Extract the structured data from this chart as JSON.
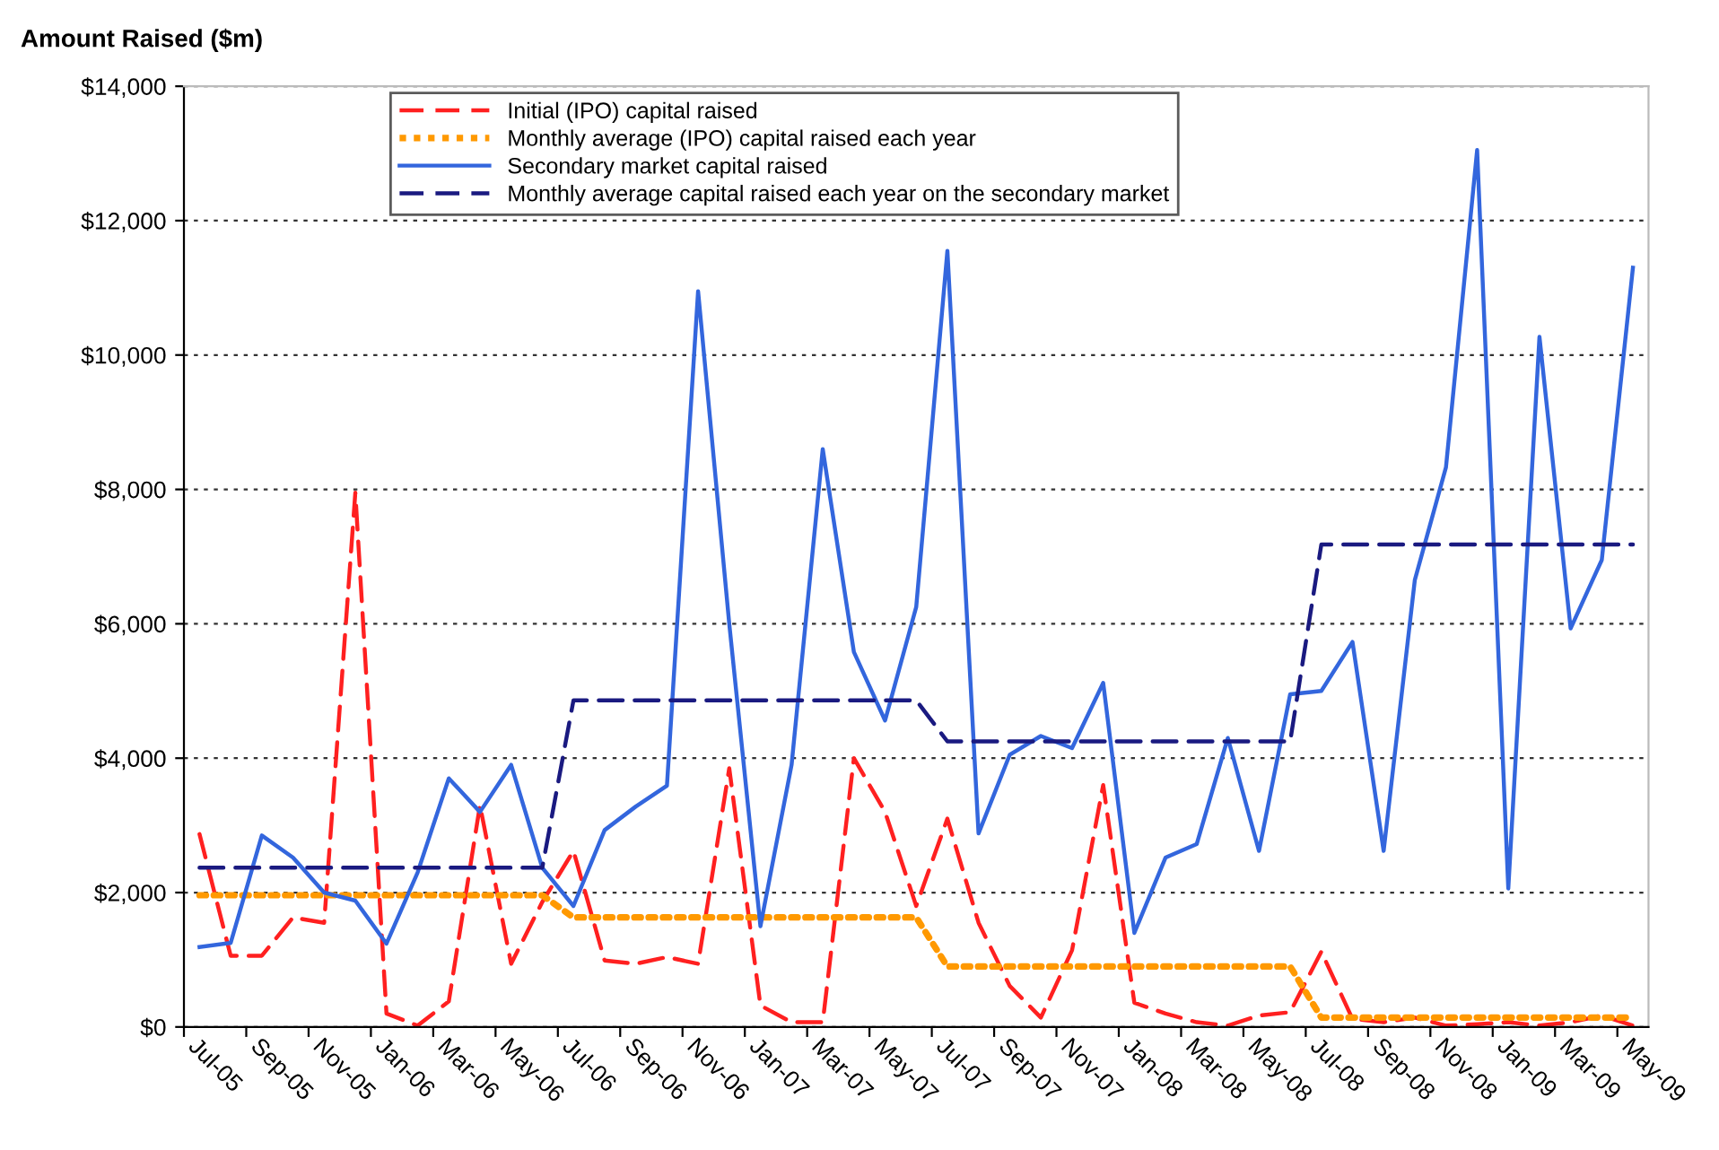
{
  "chart_data": {
    "type": "line",
    "ylabel": "Amount Raised ($m)",
    "categories": [
      "Jul-05",
      null,
      "Sep-05",
      null,
      "Nov-05",
      null,
      "Jan-06",
      null,
      "Mar-06",
      null,
      "May-06",
      null,
      "Jul-06",
      null,
      "Sep-06",
      null,
      "Nov-06",
      null,
      "Jan-07",
      null,
      "Mar-07",
      null,
      "May-07",
      null,
      "Jul-07",
      null,
      "Sep-07",
      null,
      "Nov-07",
      null,
      "Jan-08",
      null,
      "Mar-08",
      null,
      "May-08",
      null,
      "Jul-08",
      null,
      "Sep-08",
      null,
      "Nov-08",
      null,
      "Jan-09",
      null,
      "Mar-09",
      null,
      "May-09"
    ],
    "series": [
      {
        "name": "Initial (IPO) capital raised",
        "color": "#ff2020",
        "line_style": "dashed",
        "values": [
          2870,
          1060,
          1060,
          1630,
          1550,
          7950,
          200,
          20,
          380,
          3300,
          940,
          1860,
          2620,
          990,
          940,
          1040,
          940,
          3850,
          320,
          70,
          70,
          4000,
          3200,
          1800,
          3100,
          1550,
          610,
          140,
          1140,
          3600,
          360,
          200,
          70,
          20,
          170,
          220,
          1120,
          120,
          70,
          140,
          20,
          40,
          70,
          20,
          70,
          170,
          20
        ]
      },
      {
        "name": "Monthly average (IPO) capital raised each year",
        "color": "#ff9900",
        "line_style": "dotted",
        "values": [
          1960,
          1960,
          1960,
          1960,
          1960,
          1960,
          1960,
          1960,
          1960,
          1960,
          1960,
          1960,
          1630,
          1630,
          1630,
          1630,
          1630,
          1630,
          1630,
          1630,
          1630,
          1630,
          1630,
          1630,
          900,
          900,
          900,
          900,
          900,
          900,
          900,
          900,
          900,
          900,
          900,
          900,
          140,
          140,
          140,
          140,
          140,
          140,
          140,
          140,
          140,
          140,
          140
        ]
      },
      {
        "name": "Secondary market capital raised",
        "color": "#3366dd",
        "line_style": "solid",
        "values": [
          1190,
          1250,
          2850,
          2520,
          2000,
          1880,
          1240,
          2300,
          3700,
          3200,
          3900,
          2370,
          1800,
          2930,
          3280,
          3590,
          10950,
          6000,
          1500,
          3900,
          8600,
          5580,
          4560,
          6250,
          11550,
          2880,
          4050,
          4330,
          4150,
          5120,
          1400,
          2520,
          2720,
          4300,
          2620,
          4950,
          5000,
          5730,
          2620,
          6650,
          8330,
          13050,
          2060,
          10270,
          5930,
          6950,
          11300
        ]
      },
      {
        "name": "Monthly average capital raised each year on the secondary market",
        "color": "#1a1a80",
        "line_style": "dashed",
        "values": [
          2370,
          2370,
          2370,
          2370,
          2370,
          2370,
          2370,
          2370,
          2370,
          2370,
          2370,
          2370,
          4860,
          4860,
          4860,
          4860,
          4860,
          4860,
          4860,
          4860,
          4860,
          4860,
          4860,
          4860,
          4250,
          4250,
          4250,
          4250,
          4250,
          4250,
          4250,
          4250,
          4250,
          4250,
          4250,
          4250,
          7180,
          7180,
          7180,
          7180,
          7180,
          7180,
          7180,
          7180,
          7180,
          7180,
          7180
        ]
      }
    ],
    "ylim": [
      0,
      14000
    ],
    "yticks": [
      {
        "value": 0,
        "label": "$0"
      },
      {
        "value": 2000,
        "label": "$2,000"
      },
      {
        "value": 4000,
        "label": "$4,000"
      },
      {
        "value": 6000,
        "label": "$6,000"
      },
      {
        "value": 8000,
        "label": "$8,000"
      },
      {
        "value": 10000,
        "label": "$10,000"
      },
      {
        "value": 12000,
        "label": "$12,000"
      },
      {
        "value": 14000,
        "label": "$14,000"
      }
    ],
    "grid": "y",
    "legend": "top",
    "marker": "none"
  }
}
